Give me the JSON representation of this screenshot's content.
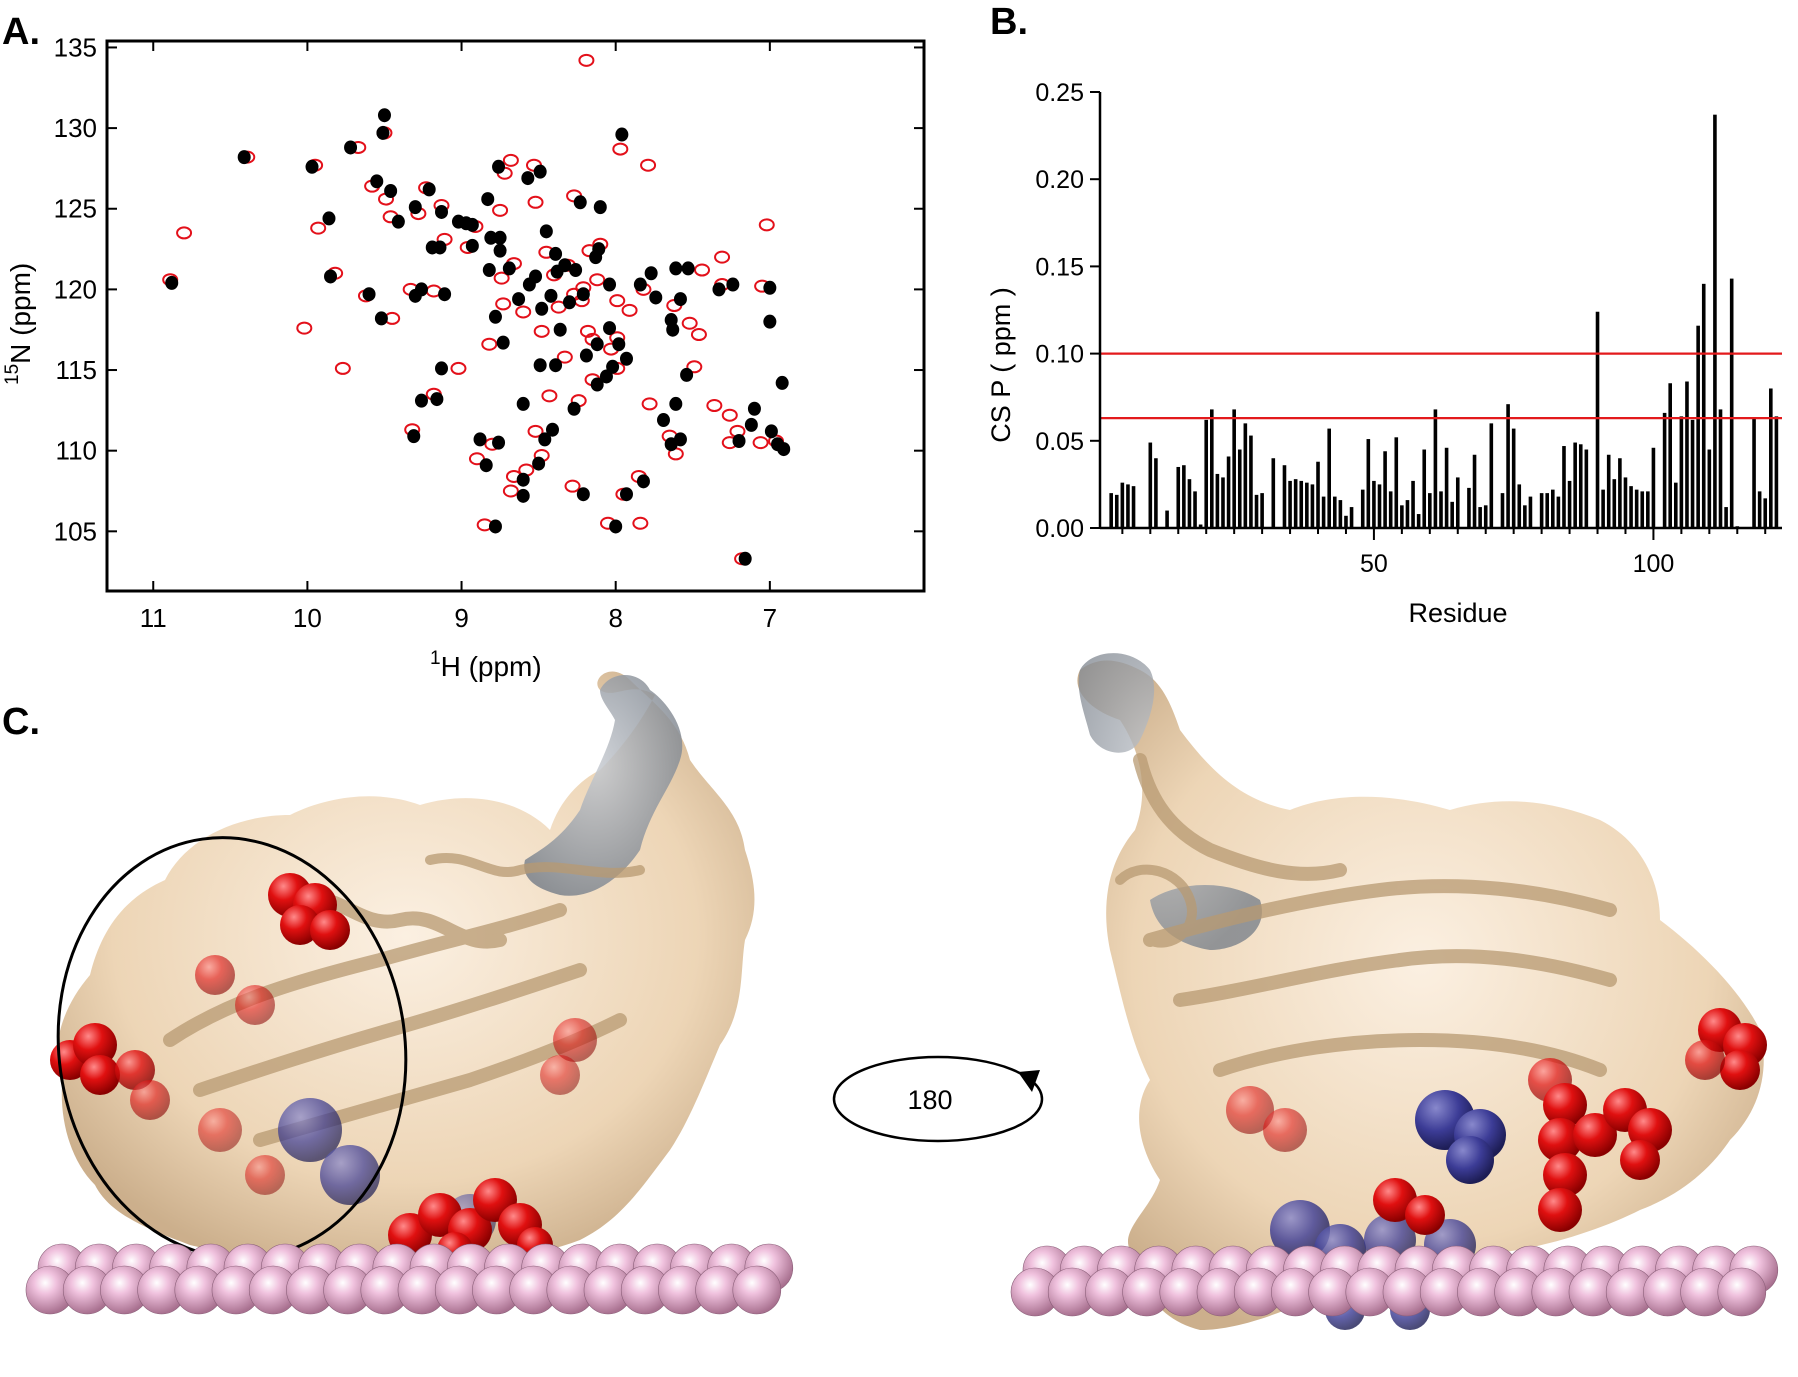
{
  "panel_labels": {
    "a": "A.",
    "b": "B.",
    "c": "C."
  },
  "colors": {
    "peak_black": "#000000",
    "peak_red": "#e3101a",
    "threshold_red": "#e31a1c",
    "surface_tan": "#ecd3b2",
    "residue_red": "#dd1111",
    "residue_blue": "#3c3c96",
    "surface_gray": "#8a9098",
    "bead_pink": "#e8b0d2"
  },
  "chart_data": [
    {
      "type": "scatter",
      "panel": "A.",
      "xlabel_sup": "1",
      "xlabel_main": "H  (ppm)",
      "ylabel_sup": "15",
      "ylabel_main": "N  (ppm)",
      "xlim": [
        11.3,
        6.0
      ],
      "ylim": [
        135.4,
        101.3
      ],
      "x_ticks": [
        11,
        10,
        9,
        8,
        7
      ],
      "y_ticks": [
        105,
        110,
        115,
        120,
        125,
        130,
        135
      ],
      "series": [
        {
          "color": "#000000",
          "points": [
            [
              7.16,
              103.3
            ],
            [
              8.78,
              105.3
            ],
            [
              8.0,
              105.3
            ],
            [
              8.6,
              107.2
            ],
            [
              8.21,
              107.3
            ],
            [
              7.93,
              107.3
            ],
            [
              8.6,
              108.2
            ],
            [
              7.82,
              108.1
            ],
            [
              8.84,
              109.1
            ],
            [
              8.5,
              109.2
            ],
            [
              9.31,
              110.9
            ],
            [
              8.88,
              110.7
            ],
            [
              8.76,
              110.5
            ],
            [
              8.46,
              110.7
            ],
            [
              8.41,
              111.3
            ],
            [
              7.64,
              110.4
            ],
            [
              7.58,
              110.7
            ],
            [
              6.99,
              111.2
            ],
            [
              6.95,
              110.4
            ],
            [
              6.91,
              110.1
            ],
            [
              7.2,
              110.6
            ],
            [
              7.12,
              111.6
            ],
            [
              7.69,
              111.9
            ],
            [
              7.61,
              112.9
            ],
            [
              7.1,
              112.6
            ],
            [
              8.6,
              112.9
            ],
            [
              9.26,
              113.1
            ],
            [
              9.16,
              113.2
            ],
            [
              8.27,
              112.6
            ],
            [
              8.12,
              114.1
            ],
            [
              8.06,
              114.6
            ],
            [
              8.02,
              115.2
            ],
            [
              7.93,
              115.7
            ],
            [
              7.54,
              114.7
            ],
            [
              6.92,
              114.2
            ],
            [
              9.13,
              115.1
            ],
            [
              8.49,
              115.3
            ],
            [
              8.39,
              115.3
            ],
            [
              8.73,
              116.7
            ],
            [
              8.19,
              115.9
            ],
            [
              8.12,
              116.6
            ],
            [
              7.98,
              116.6
            ],
            [
              8.36,
              117.5
            ],
            [
              8.04,
              117.6
            ],
            [
              7.63,
              117.5
            ],
            [
              7.64,
              118.1
            ],
            [
              7.0,
              118.0
            ],
            [
              8.78,
              118.3
            ],
            [
              8.48,
              118.8
            ],
            [
              8.3,
              119.2
            ],
            [
              9.52,
              118.2
            ],
            [
              8.63,
              119.4
            ],
            [
              8.42,
              119.6
            ],
            [
              8.21,
              119.7
            ],
            [
              8.04,
              120.3
            ],
            [
              7.84,
              120.3
            ],
            [
              7.74,
              119.5
            ],
            [
              7.58,
              119.4
            ],
            [
              9.6,
              119.7
            ],
            [
              9.3,
              119.6
            ],
            [
              9.26,
              120.0
            ],
            [
              9.11,
              119.7
            ],
            [
              7.33,
              120.0
            ],
            [
              7.24,
              120.3
            ],
            [
              7.0,
              120.1
            ],
            [
              10.88,
              120.4
            ],
            [
              9.85,
              120.8
            ],
            [
              8.56,
              120.3
            ],
            [
              8.52,
              120.8
            ],
            [
              8.38,
              121.1
            ],
            [
              8.26,
              121.2
            ],
            [
              8.82,
              121.2
            ],
            [
              8.69,
              121.3
            ],
            [
              8.33,
              121.5
            ],
            [
              7.77,
              121.0
            ],
            [
              7.61,
              121.3
            ],
            [
              7.53,
              121.3
            ],
            [
              8.39,
              122.2
            ],
            [
              8.13,
              122.0
            ],
            [
              8.75,
              122.4
            ],
            [
              8.93,
              122.7
            ],
            [
              9.19,
              122.6
            ],
            [
              9.14,
              122.6
            ],
            [
              8.11,
              122.5
            ],
            [
              8.81,
              123.2
            ],
            [
              8.75,
              123.2
            ],
            [
              8.45,
              123.6
            ],
            [
              8.93,
              124.0
            ],
            [
              9.02,
              124.2
            ],
            [
              8.97,
              124.1
            ],
            [
              9.41,
              124.2
            ],
            [
              9.86,
              124.4
            ],
            [
              9.13,
              124.8
            ],
            [
              9.3,
              125.1
            ],
            [
              8.83,
              125.6
            ],
            [
              8.23,
              125.4
            ],
            [
              8.1,
              125.1
            ],
            [
              9.46,
              126.1
            ],
            [
              9.55,
              126.7
            ],
            [
              9.21,
              126.2
            ],
            [
              8.57,
              126.9
            ],
            [
              8.49,
              127.3
            ],
            [
              8.76,
              127.6
            ],
            [
              9.97,
              127.6
            ],
            [
              10.41,
              128.2
            ],
            [
              9.72,
              128.8
            ],
            [
              7.96,
              129.6
            ],
            [
              9.51,
              129.7
            ],
            [
              9.5,
              130.8
            ]
          ]
        },
        {
          "color": "#e3101a",
          "points": [
            [
              7.18,
              103.3
            ],
            [
              8.85,
              105.4
            ],
            [
              8.05,
              105.5
            ],
            [
              7.84,
              105.5
            ],
            [
              8.68,
              107.5
            ],
            [
              8.28,
              107.8
            ],
            [
              7.95,
              107.3
            ],
            [
              8.66,
              108.4
            ],
            [
              7.85,
              108.4
            ],
            [
              8.58,
              108.8
            ],
            [
              8.9,
              109.5
            ],
            [
              8.48,
              109.7
            ],
            [
              7.61,
              109.8
            ],
            [
              7.06,
              110.5
            ],
            [
              9.32,
              111.3
            ],
            [
              8.8,
              110.4
            ],
            [
              8.52,
              111.2
            ],
            [
              7.65,
              110.9
            ],
            [
              6.96,
              110.6
            ],
            [
              7.21,
              111.2
            ],
            [
              7.26,
              112.2
            ],
            [
              7.78,
              112.9
            ],
            [
              7.36,
              112.8
            ],
            [
              8.43,
              113.4
            ],
            [
              9.18,
              113.5
            ],
            [
              8.24,
              113.1
            ],
            [
              8.15,
              114.4
            ],
            [
              7.99,
              115.1
            ],
            [
              7.49,
              115.2
            ],
            [
              9.02,
              115.1
            ],
            [
              8.33,
              115.8
            ],
            [
              8.82,
              116.6
            ],
            [
              8.15,
              116.9
            ],
            [
              8.03,
              116.3
            ],
            [
              7.99,
              117.0
            ],
            [
              7.46,
              117.2
            ],
            [
              8.48,
              117.4
            ],
            [
              8.18,
              117.4
            ],
            [
              7.52,
              117.9
            ],
            [
              8.6,
              118.6
            ],
            [
              8.37,
              118.9
            ],
            [
              7.91,
              118.7
            ],
            [
              7.62,
              119.0
            ],
            [
              9.45,
              118.2
            ],
            [
              8.73,
              119.1
            ],
            [
              8.22,
              119.3
            ],
            [
              8.27,
              119.7
            ],
            [
              7.82,
              120.0
            ],
            [
              9.62,
              119.6
            ],
            [
              9.33,
              120.0
            ],
            [
              9.18,
              119.9
            ],
            [
              7.99,
              119.3
            ],
            [
              7.31,
              120.3
            ],
            [
              7.05,
              120.2
            ],
            [
              10.89,
              120.6
            ],
            [
              9.82,
              121.0
            ],
            [
              8.74,
              120.7
            ],
            [
              8.12,
              120.6
            ],
            [
              8.4,
              120.9
            ],
            [
              8.31,
              121.5
            ],
            [
              8.66,
              121.6
            ],
            [
              7.44,
              121.2
            ],
            [
              7.31,
              122.0
            ],
            [
              8.1,
              122.8
            ],
            [
              8.45,
              122.3
            ],
            [
              8.96,
              122.6
            ],
            [
              8.17,
              122.4
            ],
            [
              9.11,
              123.1
            ],
            [
              8.91,
              123.9
            ],
            [
              9.93,
              123.8
            ],
            [
              9.46,
              124.5
            ],
            [
              9.28,
              124.7
            ],
            [
              9.13,
              125.2
            ],
            [
              8.75,
              124.9
            ],
            [
              8.52,
              125.4
            ],
            [
              8.27,
              125.8
            ],
            [
              9.49,
              125.6
            ],
            [
              9.58,
              126.4
            ],
            [
              9.23,
              126.3
            ],
            [
              8.53,
              127.7
            ],
            [
              8.72,
              127.2
            ],
            [
              10.39,
              128.2
            ],
            [
              9.95,
              127.7
            ],
            [
              9.67,
              128.8
            ],
            [
              7.97,
              128.7
            ],
            [
              9.5,
              129.7
            ],
            [
              8.68,
              128.0
            ],
            [
              7.79,
              127.7
            ],
            [
              8.21,
              120.1
            ],
            [
              7.02,
              124.0
            ],
            [
              9.77,
              115.1
            ],
            [
              10.02,
              117.6
            ],
            [
              8.19,
              134.2
            ],
            [
              10.8,
              123.5
            ],
            [
              7.26,
              110.5
            ]
          ]
        }
      ]
    },
    {
      "type": "bar",
      "panel": "B.",
      "xlabel": "Residue",
      "ylabel": "CS P ( ppm )",
      "xlim": [
        1,
        123
      ],
      "ylim": [
        0,
        0.25
      ],
      "x_ticks": [
        50,
        100
      ],
      "y_ticks": [
        0.0,
        0.05,
        0.1,
        0.15,
        0.2,
        0.25
      ],
      "y_tick_labels": [
        "0.00",
        "0.05",
        "0.10",
        "0.15",
        "0.20",
        "0.25"
      ],
      "thresholds": [
        0.1,
        0.063
      ],
      "x": [
        3,
        4,
        5,
        6,
        7,
        10,
        11,
        13,
        15,
        16,
        17,
        18,
        19,
        20,
        21,
        22,
        23,
        24,
        25,
        26,
        27,
        28,
        29,
        30,
        32,
        34,
        35,
        36,
        37,
        38,
        39,
        40,
        41,
        42,
        43,
        44,
        45,
        46,
        48,
        49,
        50,
        51,
        52,
        53,
        54,
        55,
        56,
        57,
        58,
        59,
        60,
        61,
        62,
        63,
        64,
        65,
        67,
        68,
        69,
        70,
        71,
        73,
        74,
        75,
        76,
        77,
        78,
        80,
        81,
        82,
        83,
        84,
        85,
        86,
        87,
        88,
        90,
        91,
        92,
        93,
        94,
        95,
        96,
        97,
        98,
        99,
        100,
        102,
        103,
        104,
        105,
        106,
        107,
        108,
        109,
        110,
        111,
        112,
        113,
        114,
        115,
        118,
        119,
        120,
        121,
        122
      ],
      "values": [
        0.02,
        0.019,
        0.026,
        0.025,
        0.024,
        0.049,
        0.04,
        0.01,
        0.035,
        0.036,
        0.028,
        0.021,
        0.002,
        0.062,
        0.068,
        0.031,
        0.029,
        0.041,
        0.068,
        0.045,
        0.06,
        0.053,
        0.019,
        0.02,
        0.04,
        0.036,
        0.027,
        0.028,
        0.027,
        0.026,
        0.025,
        0.038,
        0.018,
        0.057,
        0.018,
        0.016,
        0.007,
        0.012,
        0.022,
        0.051,
        0.027,
        0.025,
        0.044,
        0.021,
        0.052,
        0.013,
        0.016,
        0.027,
        0.008,
        0.045,
        0.02,
        0.068,
        0.021,
        0.046,
        0.015,
        0.029,
        0.023,
        0.042,
        0.012,
        0.013,
        0.06,
        0.02,
        0.071,
        0.057,
        0.025,
        0.013,
        0.018,
        0.02,
        0.02,
        0.022,
        0.018,
        0.047,
        0.027,
        0.049,
        0.048,
        0.045,
        0.124,
        0.022,
        0.042,
        0.028,
        0.04,
        0.029,
        0.024,
        0.022,
        0.021,
        0.021,
        0.046,
        0.066,
        0.083,
        0.026,
        0.064,
        0.084,
        0.062,
        0.116,
        0.14,
        0.045,
        0.237,
        0.068,
        0.012,
        0.143,
        0.001,
        0.063,
        0.021,
        0.017,
        0.08,
        0.064
      ]
    }
  ],
  "panel_c": {
    "rotation_label": "180"
  }
}
